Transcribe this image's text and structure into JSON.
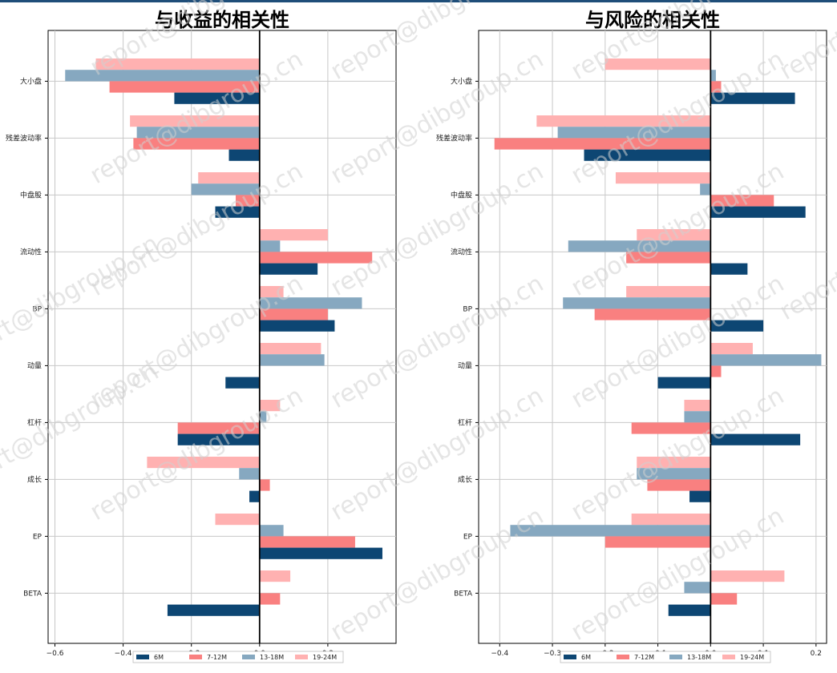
{
  "chart_data": [
    {
      "type": "bar",
      "orientation": "horizontal",
      "title": "与收益的相关性",
      "xlim": [
        -0.62,
        0.4
      ],
      "xticks": [
        -0.6,
        -0.4,
        -0.2,
        0.0,
        0.2
      ],
      "xtick_labels": [
        "−0.6",
        "−0.4",
        "−0.2",
        "0.0",
        "0.2"
      ],
      "grid": true,
      "categories": [
        "大小盘",
        "残差波动率",
        "中盘股",
        "流动性",
        "BP",
        "动量",
        "杠杆",
        "成长",
        "EP",
        "BETA"
      ],
      "series": [
        {
          "name": "19-24M",
          "color": "#ffb1b1",
          "values": [
            -0.48,
            -0.38,
            -0.18,
            0.2,
            0.07,
            0.18,
            0.06,
            -0.33,
            -0.13,
            0.09
          ]
        },
        {
          "name": "13-18M",
          "color": "#86a8c0",
          "values": [
            -0.57,
            -0.36,
            -0.2,
            0.06,
            0.3,
            0.19,
            0.02,
            -0.06,
            0.07,
            null
          ]
        },
        {
          "name": "7-12M",
          "color": "#f98080",
          "values": [
            -0.44,
            -0.37,
            -0.07,
            0.33,
            0.2,
            null,
            -0.24,
            0.03,
            0.28,
            0.06
          ]
        },
        {
          "name": "6M",
          "color": "#0d4673",
          "values": [
            -0.25,
            -0.09,
            -0.13,
            0.17,
            0.22,
            -0.1,
            -0.24,
            -0.03,
            0.36,
            -0.27
          ]
        }
      ],
      "legend": {
        "placement": "bottom",
        "labels": [
          "6M",
          "7-12M",
          "13-18M",
          "19-24M"
        ]
      }
    },
    {
      "type": "bar",
      "orientation": "horizontal",
      "title": "与风险的相关性",
      "xlim": [
        -0.44,
        0.22
      ],
      "xticks": [
        -0.4,
        -0.3,
        -0.2,
        -0.1,
        0.0,
        0.1,
        0.2
      ],
      "xtick_labels": [
        "−0.4",
        "−0.3",
        "−0.2",
        "−0.1",
        "0.0",
        "0.1",
        "0.2"
      ],
      "grid": true,
      "categories": [
        "大小盘",
        "残差波动率",
        "中盘股",
        "流动性",
        "BP",
        "动量",
        "杠杆",
        "成长",
        "EP",
        "BETA"
      ],
      "series": [
        {
          "name": "19-24M",
          "color": "#ffb1b1",
          "values": [
            -0.2,
            -0.33,
            -0.18,
            -0.14,
            -0.16,
            0.08,
            -0.05,
            -0.14,
            -0.15,
            0.14
          ]
        },
        {
          "name": "13-18M",
          "color": "#86a8c0",
          "values": [
            0.01,
            -0.29,
            -0.02,
            -0.27,
            -0.28,
            0.21,
            -0.05,
            -0.14,
            -0.38,
            -0.05
          ]
        },
        {
          "name": "7-12M",
          "color": "#f98080",
          "values": [
            0.02,
            -0.41,
            0.12,
            -0.16,
            -0.22,
            0.02,
            -0.15,
            -0.12,
            -0.2,
            0.05
          ]
        },
        {
          "name": "6M",
          "color": "#0d4673",
          "values": [
            0.16,
            -0.24,
            0.18,
            0.07,
            0.1,
            -0.1,
            0.17,
            -0.04,
            null,
            -0.08
          ]
        }
      ],
      "legend": {
        "placement": "bottom",
        "labels": [
          "6M",
          "7-12M",
          "13-18M",
          "19-24M"
        ]
      }
    }
  ],
  "watermark": "report@dibgroup.cn"
}
